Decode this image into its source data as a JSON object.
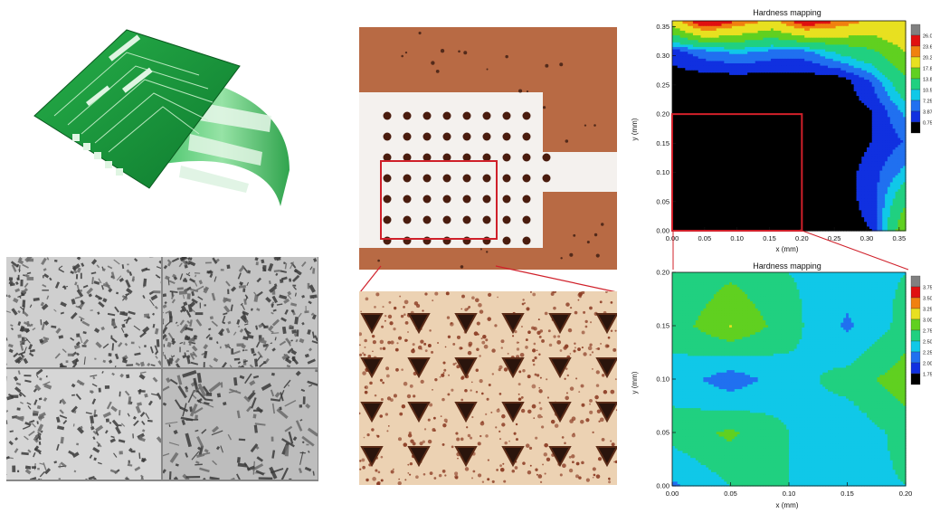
{
  "charts": [
    {
      "title": "Hardness mapping",
      "xlabel": "x (mm)",
      "ylabel": "y (mm)",
      "xticks": [
        "0.00",
        "0.05",
        "0.10",
        "0.15",
        "0.20",
        "0.25",
        "0.30",
        "0.35"
      ],
      "yticks": [
        "0.00",
        "0.05",
        "0.10",
        "0.15",
        "0.20",
        "0.25",
        "0.30",
        "0.35"
      ],
      "legend": [
        "26.00",
        "23.63",
        "20.25",
        "17.88",
        "13.80",
        "10.53",
        "7.250",
        "3.875",
        "0.7500"
      ]
    },
    {
      "title": "Hardness mapping",
      "xlabel": "x (mm)",
      "ylabel": "y (mm)",
      "xticks": [
        "0.00",
        "0.05",
        "0.10",
        "0.15",
        "0.20"
      ],
      "yticks": [
        "0.00",
        "0.05",
        "0.10",
        "0.15",
        "0.20"
      ],
      "legend": [
        "3.750",
        "3.500",
        "3.250",
        "3.000",
        "2.750",
        "2.500",
        "2.250",
        "2.000",
        "1.750"
      ]
    }
  ],
  "chart_data": [
    {
      "type": "heatmap",
      "title": "Hardness mapping",
      "xlabel": "x (mm)",
      "ylabel": "y (mm)",
      "xlim": [
        0,
        0.36
      ],
      "ylim": [
        0,
        0.36
      ],
      "x": [
        0.0,
        0.05,
        0.1,
        0.15,
        0.2,
        0.25,
        0.3,
        0.35
      ],
      "y": [
        0.0,
        0.05,
        0.1,
        0.15,
        0.2,
        0.25,
        0.3,
        0.35
      ],
      "z": [
        [
          0.75,
          0.75,
          0.75,
          0.75,
          0.75,
          0.75,
          2.0,
          14.0
        ],
        [
          0.75,
          0.75,
          0.75,
          0.75,
          0.75,
          0.75,
          3.0,
          10.0
        ],
        [
          0.75,
          0.75,
          0.75,
          0.75,
          0.75,
          0.75,
          3.0,
          6.0
        ],
        [
          0.75,
          0.75,
          0.75,
          0.75,
          0.75,
          0.75,
          2.0,
          4.0
        ],
        [
          0.75,
          0.75,
          0.75,
          0.75,
          0.75,
          0.75,
          2.0,
          6.0
        ],
        [
          0.75,
          0.75,
          0.75,
          0.75,
          0.75,
          0.75,
          4.0,
          10.0
        ],
        [
          3.0,
          5.0,
          6.0,
          5.0,
          5.0,
          8.0,
          10.0,
          14.0
        ],
        [
          16.0,
          24.0,
          20.0,
          17.0,
          23.0,
          20.0,
          17.0,
          18.0
        ]
      ],
      "colorbar": [
        "26.00",
        "23.63",
        "20.25",
        "17.88",
        "13.80",
        "10.53",
        "7.250",
        "3.875",
        "0.7500"
      ],
      "highlight_region": {
        "x": [
          0,
          0.2
        ],
        "y": [
          0,
          0.2
        ]
      }
    },
    {
      "type": "heatmap",
      "title": "Hardness mapping",
      "xlabel": "x (mm)",
      "ylabel": "y (mm)",
      "xlim": [
        0,
        0.2
      ],
      "ylim": [
        0,
        0.2
      ],
      "x": [
        0.0,
        0.05,
        0.1,
        0.15,
        0.2
      ],
      "y": [
        0.0,
        0.05,
        0.1,
        0.15,
        0.2
      ],
      "z": [
        [
          2.2,
          2.5,
          2.5,
          2.4,
          2.5
        ],
        [
          2.6,
          2.8,
          2.5,
          2.3,
          2.6
        ],
        [
          2.4,
          2.1,
          2.4,
          2.6,
          2.9
        ],
        [
          2.6,
          3.0,
          2.6,
          2.2,
          2.6
        ],
        [
          2.5,
          2.7,
          2.5,
          2.4,
          2.5
        ]
      ],
      "colorbar": [
        "3.750",
        "3.500",
        "3.250",
        "3.000",
        "2.750",
        "2.500",
        "2.250",
        "2.000",
        "1.750"
      ]
    }
  ],
  "colors": {
    "pcb_green": "#1a9a3a",
    "pcb_dark": "#0c6b26",
    "optical_brown": "#b86a44",
    "indent": "#3a1a10",
    "highlight_red": "#d0202a",
    "map_blue": "#1030e0"
  }
}
